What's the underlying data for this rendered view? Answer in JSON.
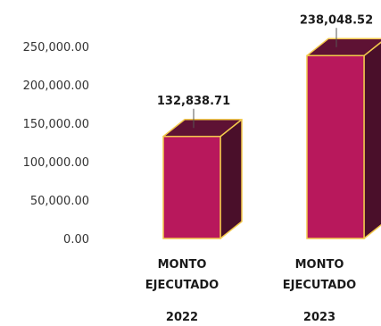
{
  "chart_data": {
    "type": "bar",
    "style": "3d-column",
    "categories": [
      {
        "label_line1": "MONTO",
        "label_line2": "EJECUTADO",
        "year": "2022"
      },
      {
        "label_line1": "MONTO",
        "label_line2": "EJECUTADO",
        "year": "2023"
      }
    ],
    "values": [
      132838.71,
      238048.52
    ],
    "data_labels": [
      "132,838.71",
      "238,048.52"
    ],
    "y_ticks": [
      {
        "value": 0,
        "label": "0.00"
      },
      {
        "value": 50000,
        "label": "50,000.00"
      },
      {
        "value": 100000,
        "label": "100,000.00"
      },
      {
        "value": 150000,
        "label": "150,000.00"
      },
      {
        "value": 200000,
        "label": "200,000.00"
      },
      {
        "value": 250000,
        "label": "250,000.00"
      }
    ],
    "ylim": [
      0,
      250000
    ],
    "grid": false,
    "title": "",
    "xlabel": "",
    "ylabel": "",
    "colors": {
      "front": "#b8185c",
      "side": "#4a0f2a",
      "top": "#5e1234",
      "outline": "#f2c94c",
      "leader": "#555555"
    }
  }
}
